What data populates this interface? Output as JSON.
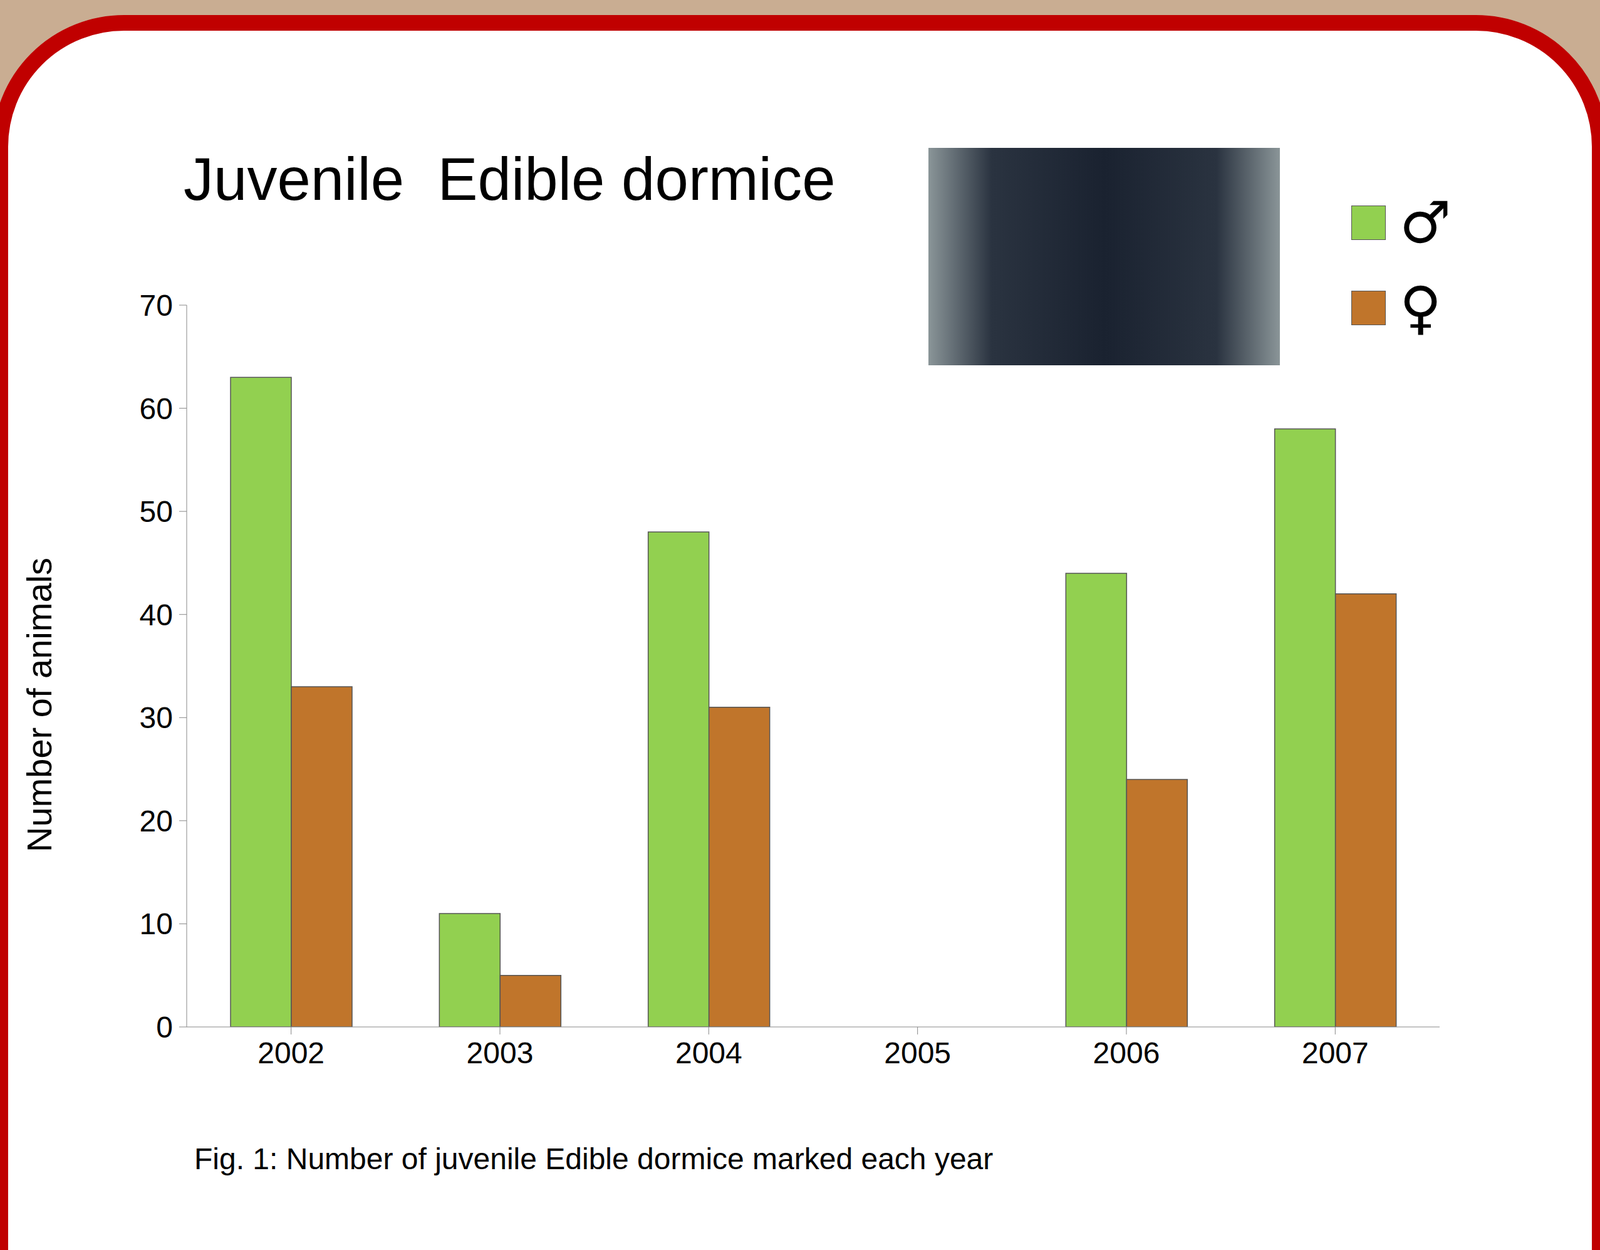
{
  "chart_data": {
    "type": "bar",
    "title": "Juvenile  Edible dormice",
    "caption": "Fig. 1: Number of juvenile Edible dormice marked each year",
    "y_label": "Number of animals",
    "categories": [
      "2002",
      "2003",
      "2004",
      "2005",
      "2006",
      "2007"
    ],
    "series": [
      {
        "name": "♂",
        "color": "#92d050",
        "values": [
          63,
          11,
          48,
          null,
          44,
          58
        ]
      },
      {
        "name": "♀",
        "color": "#c0752b",
        "values": [
          33,
          5,
          31,
          null,
          24,
          42
        ]
      }
    ],
    "ylim": [
      0,
      70
    ],
    "yticks": [
      0,
      10,
      20,
      30,
      40,
      50,
      60,
      70
    ],
    "grid": false,
    "legend": "top-right"
  }
}
